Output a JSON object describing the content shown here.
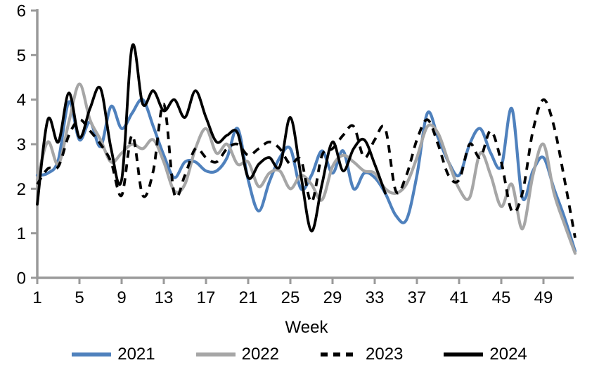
{
  "chart_data": {
    "type": "line",
    "title": "",
    "xlabel": "Week",
    "ylabel": "",
    "xlim": [
      1,
      52
    ],
    "ylim": [
      0,
      6
    ],
    "grid": false,
    "legend_position": "bottom",
    "axis_color": "#9a9a9a",
    "x_ticks": [
      1,
      5,
      9,
      13,
      17,
      21,
      25,
      29,
      33,
      37,
      41,
      45,
      49
    ],
    "y_ticks": [
      0,
      1,
      2,
      3,
      4,
      5,
      6
    ],
    "series": [
      {
        "name": "2021",
        "color": "#4f81bd",
        "style": "solid",
        "start_week": 1,
        "values": [
          2.3,
          2.35,
          2.65,
          3.95,
          3.1,
          3.5,
          2.95,
          3.85,
          3.35,
          3.7,
          4.0,
          3.4,
          2.75,
          2.25,
          2.6,
          2.6,
          2.4,
          2.4,
          2.7,
          3.35,
          2.2,
          1.5,
          2.15,
          2.7,
          2.9,
          2.0,
          2.3,
          2.85,
          2.35,
          2.85,
          2.0,
          2.35,
          2.25,
          1.9,
          1.4,
          1.3,
          2.3,
          3.7,
          3.15,
          2.6,
          2.3,
          3.0,
          3.35,
          2.8,
          2.5,
          3.8,
          1.8,
          2.4,
          2.7,
          2.0,
          1.35,
          0.6
        ]
      },
      {
        "name": "2022",
        "color": "#a6a6a6",
        "style": "solid",
        "start_week": 1,
        "values": [
          2.2,
          3.05,
          2.55,
          3.5,
          4.35,
          3.55,
          3.1,
          2.6,
          2.8,
          3.0,
          2.9,
          3.1,
          2.6,
          1.95,
          2.1,
          2.9,
          3.35,
          2.8,
          3.0,
          2.55,
          2.6,
          2.05,
          2.35,
          2.4,
          2.0,
          2.3,
          2.1,
          1.75,
          2.5,
          2.75,
          2.6,
          2.4,
          2.35,
          2.0,
          1.9,
          2.1,
          2.7,
          3.4,
          3.25,
          2.6,
          2.0,
          1.8,
          2.8,
          2.3,
          1.6,
          2.1,
          1.1,
          2.3,
          3.0,
          1.9,
          1.2,
          0.55
        ]
      },
      {
        "name": "2023",
        "color": "#000000",
        "style": "dashed",
        "start_week": 1,
        "values": [
          2.1,
          2.45,
          2.5,
          3.2,
          3.55,
          3.3,
          3.0,
          2.6,
          1.85,
          3.2,
          1.85,
          2.4,
          3.9,
          1.88,
          2.3,
          2.9,
          2.7,
          2.6,
          2.9,
          3.0,
          2.75,
          2.9,
          3.05,
          2.9,
          2.55,
          2.65,
          1.7,
          2.75,
          2.9,
          3.2,
          3.4,
          2.7,
          3.1,
          3.35,
          1.95,
          2.3,
          3.1,
          3.55,
          3.0,
          2.3,
          2.2,
          3.0,
          2.7,
          3.3,
          2.6,
          1.5,
          1.9,
          3.3,
          4.0,
          3.4,
          2.2,
          0.9
        ]
      },
      {
        "name": "2024",
        "color": "#000000",
        "style": "solid",
        "start_week": 1,
        "values": [
          1.65,
          3.55,
          3.05,
          4.15,
          3.15,
          3.8,
          4.25,
          2.9,
          2.2,
          5.2,
          3.9,
          4.2,
          3.75,
          4.0,
          3.6,
          4.2,
          3.6,
          3.05,
          3.2,
          3.25,
          2.25,
          2.55,
          2.7,
          2.5,
          3.6,
          2.3,
          1.05,
          2.1,
          3.05,
          2.4,
          2.9,
          3.1,
          2.55,
          1.9
        ]
      }
    ]
  }
}
